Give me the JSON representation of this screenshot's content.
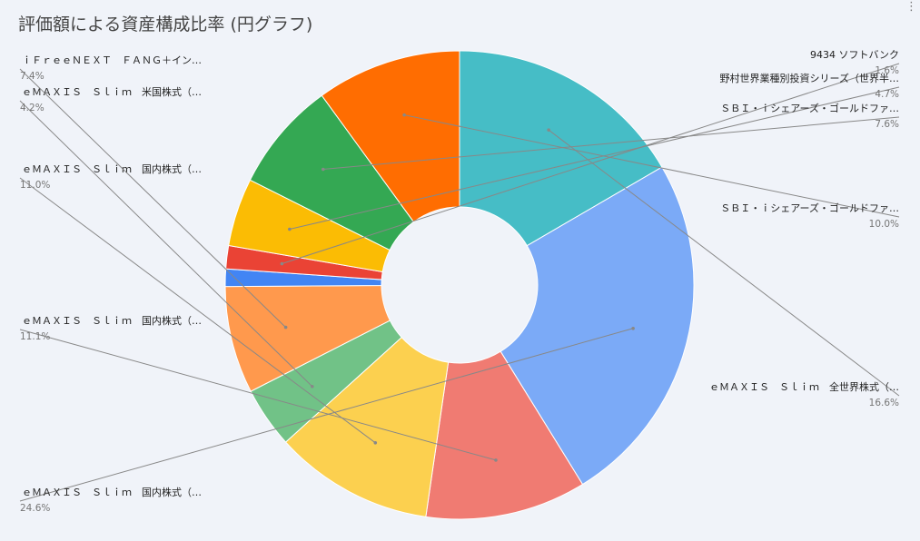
{
  "chart_data": {
    "type": "pie",
    "title": "評価額による資産構成比率 (円グラフ)",
    "donut": true,
    "start_angle_deg": 0,
    "slices": [
      {
        "label": "ｅＭＡＸＩＳ　Ｓｌｉｍ　全世界株式（…",
        "value": 16.6,
        "value_label": "16.6%",
        "color": "#46bdc6"
      },
      {
        "label": "ｅＭＡＸＩＳ　Ｓｌｉｍ　国内株式（…",
        "value": 24.6,
        "value_label": "24.6%",
        "color": "#7baaf7"
      },
      {
        "label": "ｅＭＡＸＩＳ　Ｓｌｉｍ　国内株式（…",
        "value": 11.1,
        "value_label": "11.1%",
        "color": "#f07b72"
      },
      {
        "label": "ｅＭＡＸＩＳ　Ｓｌｉｍ　国内株式（…",
        "value": 11.0,
        "value_label": "11.0%",
        "color": "#fcd04f"
      },
      {
        "label": "ｅＭＡＸＩＳ　Ｓｌｉｍ　米国株式（…",
        "value": 4.2,
        "value_label": "4.2%",
        "color": "#71c287"
      },
      {
        "label": "ｉＦｒｅｅＮＥＸＴ　ＦＡＮＧ＋イン…",
        "value": 7.4,
        "value_label": "7.4%",
        "color": "#ff994d"
      },
      {
        "label": "",
        "value": 1.2,
        "value_label": "",
        "color": "#4285f4"
      },
      {
        "label": "9434 ソフトバンク",
        "value": 1.6,
        "value_label": "1.6%",
        "color": "#ea4335"
      },
      {
        "label": "野村世界業種別投資シリーズ（世界半…",
        "value": 4.7,
        "value_label": "4.7%",
        "color": "#fbbc04"
      },
      {
        "label": "ＳＢＩ・ｉシェアーズ・ゴールドファ…",
        "value": 7.6,
        "value_label": "7.6%",
        "color": "#34a853"
      },
      {
        "label": "ＳＢＩ・ｉシェアーズ・ゴールドファ…",
        "value": 10.0,
        "value_label": "10.0%",
        "color": "#ff6d01"
      }
    ]
  },
  "menu_icon": "vertical-ellipsis-icon"
}
